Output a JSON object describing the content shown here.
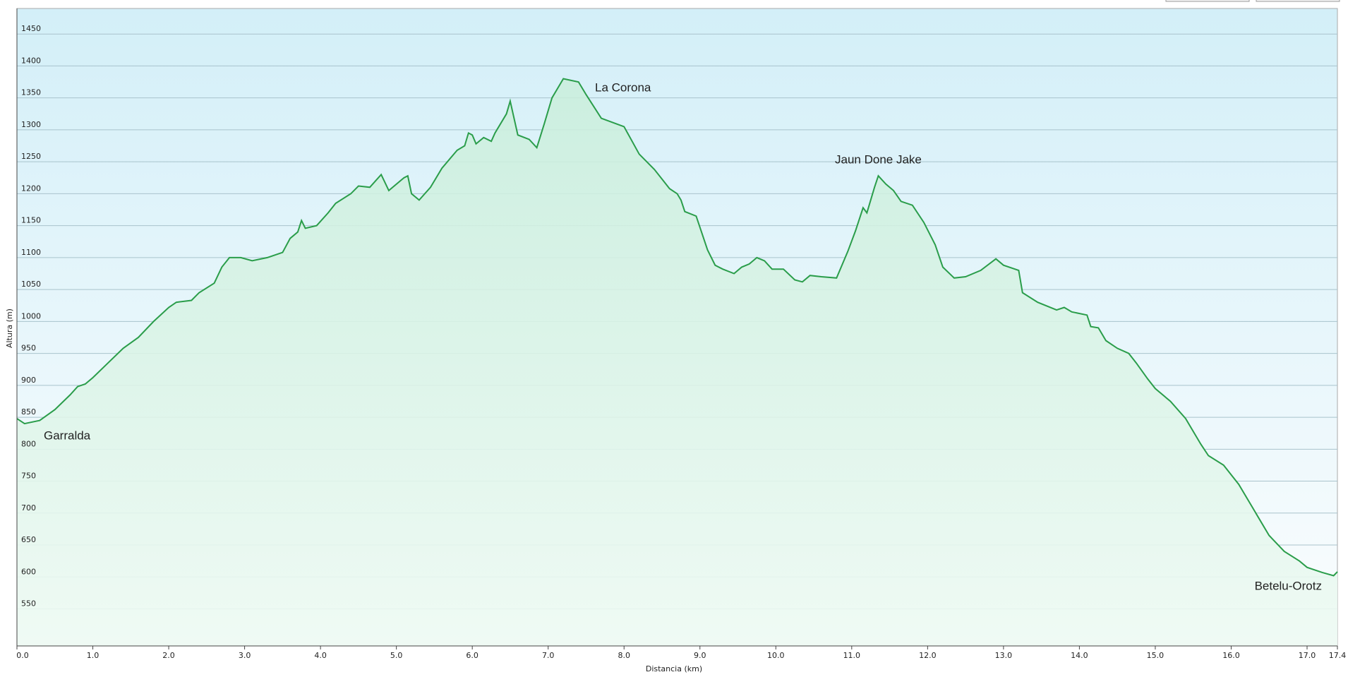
{
  "chart_data": {
    "type": "area",
    "x_label": "Distancia  (km)",
    "y_label": "Altura (m)",
    "annotations": [
      "Garralda",
      "La Corona",
      "Jaun Done Jake",
      "Betelu-Orotz"
    ],
    "color": "#2a9d4a",
    "grid": true,
    "xlim": [
      0,
      17.4
    ],
    "ylim": [
      492,
      1490
    ],
    "xticks": [
      {
        "value": 0,
        "label": "0.0"
      },
      {
        "value": 1,
        "label": "1.0"
      },
      {
        "value": 2,
        "label": "2.0"
      },
      {
        "value": 3,
        "label": "3.0"
      },
      {
        "value": 4,
        "label": "4.0"
      },
      {
        "value": 5,
        "label": "5.0"
      },
      {
        "value": 6,
        "label": "6.0"
      },
      {
        "value": 7,
        "label": "7.0"
      },
      {
        "value": 8,
        "label": "8.0"
      },
      {
        "value": 9,
        "label": "9.0"
      },
      {
        "value": 10,
        "label": "10.0"
      },
      {
        "value": 11,
        "label": "11.0"
      },
      {
        "value": 12,
        "label": "12.0"
      },
      {
        "value": 13,
        "label": "13.0"
      },
      {
        "value": 14,
        "label": "14.0"
      },
      {
        "value": 15,
        "label": "15.0"
      },
      {
        "value": 16,
        "label": "16.0"
      },
      {
        "value": 17,
        "label": "17.0"
      },
      17.4
    ],
    "yticks": [
      550,
      600,
      650,
      700,
      750,
      800,
      850,
      900,
      950,
      1000,
      1050,
      1100,
      1150,
      1200,
      1250,
      1300,
      1350,
      1400,
      1450
    ],
    "x": [
      0,
      0.1,
      0.3,
      0.5,
      0.7,
      0.8,
      0.9,
      1.0,
      1.2,
      1.4,
      1.6,
      1.8,
      2.0,
      2.1,
      2.3,
      2.4,
      2.6,
      2.7,
      2.8,
      2.95,
      3.1,
      3.3,
      3.5,
      3.6,
      3.7,
      3.75,
      3.8,
      3.95,
      4.1,
      4.2,
      4.4,
      4.5,
      4.65,
      4.8,
      4.9,
      5.1,
      5.15,
      5.2,
      5.3,
      5.45,
      5.6,
      5.8,
      5.9,
      5.95,
      6.0,
      6.05,
      6.15,
      6.25,
      6.3,
      6.45,
      6.5,
      6.6,
      6.75,
      6.85,
      6.95,
      7.05,
      7.2,
      7.4,
      7.5,
      7.7,
      8.0,
      8.2,
      8.4,
      8.6,
      8.7,
      8.75,
      8.8,
      8.95,
      9.1,
      9.2,
      9.3,
      9.45,
      9.55,
      9.65,
      9.75,
      9.85,
      9.95,
      10.1,
      10.25,
      10.35,
      10.45,
      10.6,
      10.8,
      10.95,
      11.05,
      11.15,
      11.2,
      11.3,
      11.35,
      11.45,
      11.55,
      11.65,
      11.8,
      11.95,
      12.1,
      12.2,
      12.35,
      12.5,
      12.7,
      12.9,
      13.0,
      13.2,
      13.25,
      13.45,
      13.7,
      13.8,
      13.9,
      14.1,
      14.15,
      14.25,
      14.35,
      14.5,
      14.65,
      14.75,
      14.9,
      15.0,
      15.2,
      15.4,
      15.6,
      15.7,
      15.9,
      16.1,
      16.3,
      16.5,
      16.7,
      16.9,
      17.0,
      17.2,
      17.35,
      17.4
    ],
    "values": [
      848,
      840,
      845,
      862,
      885,
      898,
      902,
      912,
      935,
      958,
      975,
      1000,
      1022,
      1030,
      1033,
      1045,
      1060,
      1085,
      1100,
      1100,
      1095,
      1100,
      1108,
      1130,
      1140,
      1158,
      1146,
      1150,
      1170,
      1185,
      1200,
      1212,
      1210,
      1230,
      1205,
      1225,
      1228,
      1200,
      1190,
      1210,
      1240,
      1268,
      1275,
      1295,
      1292,
      1278,
      1288,
      1282,
      1295,
      1325,
      1345,
      1292,
      1285,
      1272,
      1310,
      1350,
      1380,
      1375,
      1355,
      1318,
      1305,
      1262,
      1238,
      1208,
      1200,
      1190,
      1172,
      1165,
      1112,
      1088,
      1082,
      1075,
      1085,
      1090,
      1100,
      1095,
      1082,
      1082,
      1065,
      1062,
      1072,
      1070,
      1068,
      1110,
      1142,
      1178,
      1170,
      1210,
      1228,
      1215,
      1205,
      1188,
      1182,
      1155,
      1120,
      1085,
      1068,
      1070,
      1080,
      1098,
      1088,
      1080,
      1045,
      1030,
      1018,
      1022,
      1015,
      1010,
      992,
      990,
      970,
      958,
      950,
      935,
      910,
      895,
      875,
      848,
      808,
      790,
      775,
      745,
      705,
      665,
      640,
      625,
      615,
      607,
      602,
      608
    ]
  }
}
